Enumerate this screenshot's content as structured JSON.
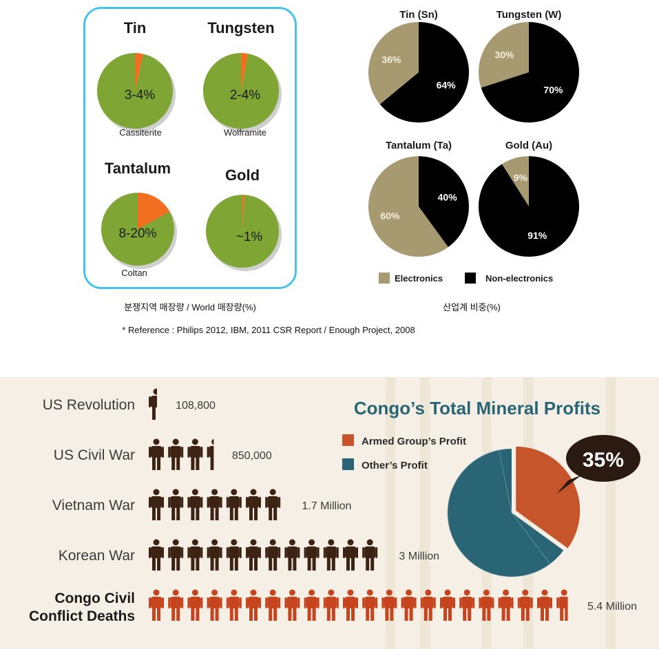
{
  "chart_data": [
    {
      "type": "pie",
      "title": "Tin",
      "sublabel": "Cassiterite",
      "value_label": "3-4%",
      "values": [
        3.5,
        96.5
      ],
      "colors": [
        "#f26f21",
        "#7fa634"
      ]
    },
    {
      "type": "pie",
      "title": "Tungsten",
      "sublabel": "Wolframite",
      "value_label": "2-4%",
      "values": [
        3,
        97
      ],
      "colors": [
        "#f26f21",
        "#7fa634"
      ]
    },
    {
      "type": "pie",
      "title": "Tantalum",
      "sublabel": "Coltan",
      "value_label": "8-20%",
      "values": [
        17,
        83
      ],
      "colors": [
        "#f26f21",
        "#7fa634"
      ]
    },
    {
      "type": "pie",
      "title": "Gold",
      "sublabel": "",
      "value_label": "~1%",
      "values": [
        1,
        99
      ],
      "colors": [
        "#f26f21",
        "#7fa634"
      ]
    },
    {
      "type": "pie",
      "title": "Tin (Sn)",
      "labels": [
        "Electronics",
        "Non-electronics"
      ],
      "values": [
        36,
        64
      ],
      "value_labels": [
        "36%",
        "64%"
      ],
      "colors": [
        "#a89a70",
        "#000000"
      ]
    },
    {
      "type": "pie",
      "title": "Tungsten (W)",
      "labels": [
        "Electronics",
        "Non-electronics"
      ],
      "values": [
        30,
        70
      ],
      "value_labels": [
        "30%",
        "70%"
      ],
      "colors": [
        "#a89a70",
        "#000000"
      ]
    },
    {
      "type": "pie",
      "title": "Tantalum (Ta)",
      "labels": [
        "Electronics",
        "Non-electronics"
      ],
      "values": [
        60,
        40
      ],
      "value_labels": [
        "60%",
        "40%"
      ],
      "colors": [
        "#a89a70",
        "#000000"
      ]
    },
    {
      "type": "pie",
      "title": "Gold (Au)",
      "labels": [
        "Electronics",
        "Non-electronics"
      ],
      "values": [
        9,
        91
      ],
      "value_labels": [
        "9%",
        "91%"
      ],
      "colors": [
        "#a89a70",
        "#000000"
      ]
    },
    {
      "type": "bar",
      "orientation": "horizontal",
      "categories": [
        "US Revolution",
        "US Civil War",
        "Vietnam War",
        "Korean War",
        "Congo Civil Conflict Deaths"
      ],
      "values": [
        108800,
        850000,
        1700000,
        3000000,
        5400000
      ],
      "value_labels": [
        "108,800",
        "850,000",
        "1.7 Million",
        "3 Million",
        "5.4 Million"
      ],
      "icon_counts": [
        0.5,
        3.4,
        7,
        12,
        21.7
      ],
      "colors": [
        "#3d2314",
        "#3d2314",
        "#3d2314",
        "#3d2314",
        "#c6451e"
      ]
    },
    {
      "type": "pie",
      "title": "Congo’s Total Mineral Profits",
      "labels": [
        "Armed Group’s Profit",
        "Other’s Profit"
      ],
      "values": [
        35,
        65
      ],
      "colors": [
        "#c6552b",
        "#2a6575"
      ],
      "callout": "35%"
    }
  ],
  "captions": {
    "left": "분쟁지역 매장량 / World 매장량(%)",
    "right": "산업계 비중(%)",
    "reference": "* Reference : Philips 2012, IBM, 2011 CSR Report / Enough Project, 2008"
  },
  "legend": {
    "electronics": "Electronics",
    "non_electronics": "Non-electronics"
  }
}
